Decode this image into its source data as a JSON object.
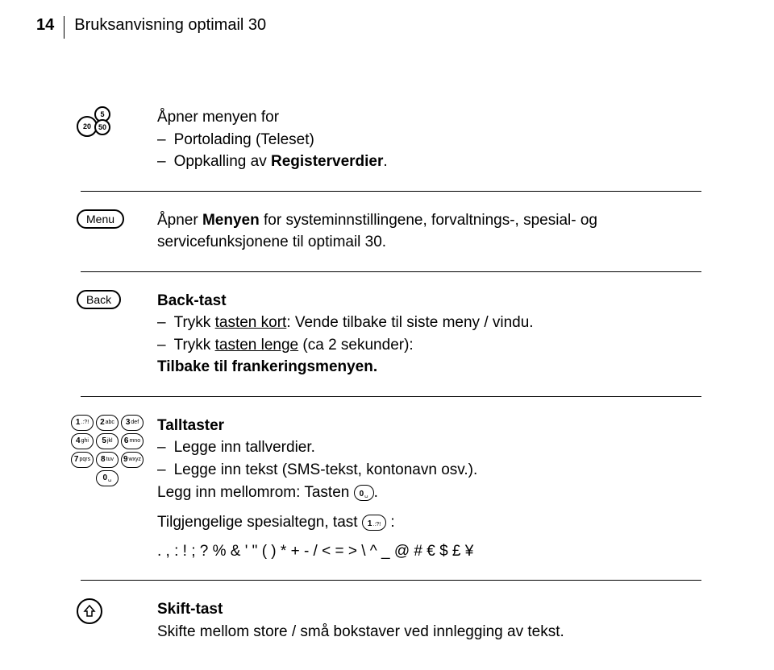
{
  "page_number": "14",
  "header_title": "Bruksanvisning optimail 30",
  "coin_large": "20",
  "coin_small": "5",
  "coin_large2": "50",
  "section1": {
    "line1": "Åpner menyen for",
    "item1": "Portolading (Teleset)",
    "item2_prefix": "Oppkalling av ",
    "item2_bold": "Registerverdier",
    "item2_suffix": "."
  },
  "menu_label": "Menu",
  "section2": {
    "prefix": "Åpner ",
    "bold": "Menyen",
    "suffix": " for systeminnstillingene, forvaltnings-, spesial- og servicefunksjonene til optimail 30."
  },
  "back_label": "Back",
  "section3": {
    "title": "Back-tast",
    "item1_prefix": "Trykk ",
    "item1_underline": "tasten kort",
    "item1_suffix": ": Vende tilbake til siste meny / vindu.",
    "item2_prefix": "Trykk ",
    "item2_underline": "tasten lenge",
    "item2_mid": " (ca 2 sekunder):",
    "item2_line2": "Tilbake til frankeringsmenyen."
  },
  "keypad": {
    "keys": [
      {
        "n": "1",
        "l": ".:?!"
      },
      {
        "n": "2",
        "l": "abc"
      },
      {
        "n": "3",
        "l": "def"
      },
      {
        "n": "4",
        "l": "ghi"
      },
      {
        "n": "5",
        "l": "jkl"
      },
      {
        "n": "6",
        "l": "mno"
      },
      {
        "n": "7",
        "l": "pqrs"
      },
      {
        "n": "8",
        "l": "tuv"
      },
      {
        "n": "9",
        "l": "wxyz"
      }
    ],
    "zero_n": "0",
    "zero_l": "␣"
  },
  "section4": {
    "title": "Talltaster",
    "item1": "Legge inn tallverdier.",
    "item2": "Legge inn tekst (SMS-tekst, kontonavn osv.).",
    "mellom_prefix": "Legg inn mellomrom: Tasten ",
    "key_zero": "0 ␣",
    "mellom_suffix": ".",
    "spesial_prefix": "Tilgjengelige spesialtegn, tast ",
    "key_one": "1.:?!",
    "spesial_suffix": " :",
    "chars": ". , : ! ; ? % & ' \" ( ) * + - / < = > \\ ^ _ @ # € $ £ ¥"
  },
  "section5": {
    "title": "Skift-tast",
    "text": "Skifte mellom store / små bokstaver ved innlegging av tekst."
  },
  "colors": {
    "text": "#000000",
    "background": "#ffffff"
  }
}
